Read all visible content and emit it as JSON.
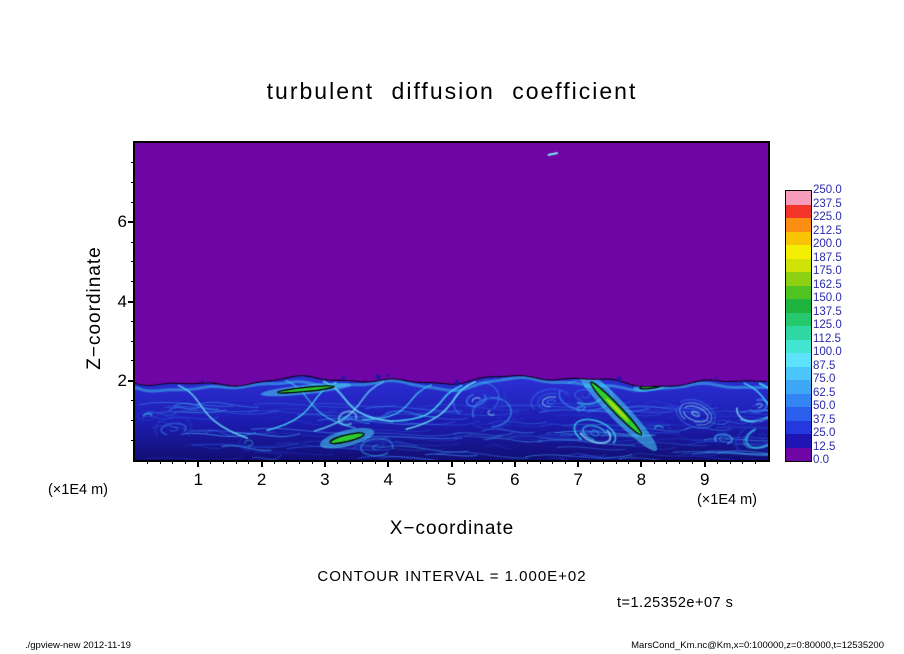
{
  "figure": {
    "footer_left": "./gpview-new  2012-11-19",
    "footer_right": "MarsCond_Km.nc@Km,x=0:100000,z=0:80000,t=12535200"
  },
  "chart_data": {
    "type": "heatmap",
    "title": "turbulent diffusion coefficient",
    "xlabel": "X−coordinate",
    "ylabel": "Z−coordinate",
    "axis_unit": "(×1E4 m)",
    "xlim": [
      0,
      10
    ],
    "zlim": [
      0,
      8
    ],
    "x_ticks": [
      1,
      2,
      3,
      4,
      5,
      6,
      7,
      8,
      9
    ],
    "z_ticks": [
      2,
      4,
      6
    ],
    "contour_interval_label": "CONTOUR INTERVAL = 1.000E+02",
    "contour_interval": 100,
    "time_label": "t=1.25352e+07 s",
    "colorbar": {
      "levels": [
        0,
        12.5,
        25,
        37.5,
        50,
        62.5,
        75,
        87.5,
        100,
        112.5,
        125,
        137.5,
        150,
        162.5,
        175,
        187.5,
        200,
        212.5,
        225,
        237.5,
        250
      ],
      "colors": [
        "#7005a5",
        "#2014b4",
        "#2439dd",
        "#2a5fee",
        "#3385f4",
        "#3ea8f7",
        "#4bc6fa",
        "#5fe2fb",
        "#43e6d0",
        "#2fd7a2",
        "#25c86d",
        "#1eb43e",
        "#4ec322",
        "#8ed013",
        "#d0e309",
        "#f4ee03",
        "#f9c404",
        "#fa8d12",
        "#f2352b",
        "#f79dbb"
      ],
      "label_color": "#2a2aa8"
    },
    "field": {
      "description": "Diffusion coefficient ~0 (purple) above z≈2e4 m; turbulent boundary layer below z≈2e4 m with blue/cyan eddies (K≈12.5–100) and isolated green patches (K>100) enclosed by the 1.000E+02 contour.",
      "boundary_z": 2.0,
      "green_patches": [
        {
          "x": 2.7,
          "z": 1.78,
          "len": 0.9,
          "thick": 0.1,
          "angle_deg": -6
        },
        {
          "x": 3.35,
          "z": 0.55,
          "len": 0.55,
          "thick": 0.17,
          "angle_deg": -14
        },
        {
          "x": 7.6,
          "z": 1.3,
          "len": 1.15,
          "thick": 0.2,
          "angle_deg": 46
        },
        {
          "x": 8.15,
          "z": 1.86,
          "len": 0.35,
          "thick": 0.09,
          "angle_deg": -8
        }
      ],
      "speck": {
        "x": 6.6,
        "z": 7.72
      }
    }
  }
}
